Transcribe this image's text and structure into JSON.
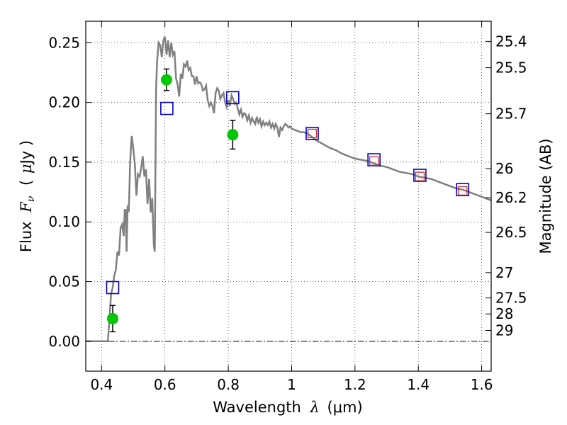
{
  "chart_data": {
    "type": "scatter",
    "xlabel": "Wavelength λ (μm)",
    "xlabel_parts": {
      "prefix": "Wavelength",
      "lambda": "λ",
      "unit": "(μm)"
    },
    "ylabel": "Flux Fν ( μJy )",
    "ylabel_parts": {
      "prefix": "Flux",
      "symbol": "F",
      "subscript": "ν",
      "unit_open": "(",
      "unit_mu": "μ",
      "unit_rest": "Jy )"
    },
    "y2label": "Magnitude (AB)",
    "xlim": [
      0.35,
      1.63
    ],
    "ylim": [
      -0.025,
      0.268
    ],
    "x_ticks": [
      0.4,
      0.6,
      0.8,
      1.0,
      1.2,
      1.4,
      1.6
    ],
    "x_tick_labels": [
      "0.4",
      "0.6",
      "0.8",
      "1",
      "1.2",
      "1.4",
      "1.6"
    ],
    "y_ticks": [
      0.0,
      0.05,
      0.1,
      0.15,
      0.2,
      0.25
    ],
    "y_tick_labels": [
      "0.00",
      "0.05",
      "0.10",
      "0.15",
      "0.20",
      "0.25"
    ],
    "y2_ticks": [
      25.4,
      25.5,
      25.7,
      26,
      26.2,
      26.5,
      27,
      27.5,
      28,
      29
    ],
    "y2_tick_labels": [
      "25.4",
      "25.5",
      "25.7",
      "26",
      "26.2",
      "26.5",
      "27",
      "27.5",
      "28",
      "29"
    ],
    "grid": true,
    "zero_line": true,
    "colors": {
      "model": "#808080",
      "observed": "#00c800",
      "model_band": "#0000cc",
      "model_band_inner": "#cc3333",
      "errorbar": "#000000"
    },
    "series": [
      {
        "name": "model-sed",
        "style": "line",
        "x": [
          0.35,
          0.42,
          0.425,
          0.43,
          0.435,
          0.44,
          0.445,
          0.45,
          0.455,
          0.46,
          0.465,
          0.47,
          0.473,
          0.476,
          0.479,
          0.482,
          0.486,
          0.49,
          0.495,
          0.5,
          0.505,
          0.51,
          0.515,
          0.52,
          0.525,
          0.53,
          0.535,
          0.54,
          0.545,
          0.55,
          0.555,
          0.56,
          0.565,
          0.568,
          0.572,
          0.575,
          0.58,
          0.585,
          0.59,
          0.595,
          0.6,
          0.605,
          0.61,
          0.615,
          0.62,
          0.625,
          0.63,
          0.635,
          0.64,
          0.645,
          0.65,
          0.655,
          0.66,
          0.665,
          0.67,
          0.675,
          0.68,
          0.685,
          0.69,
          0.695,
          0.7,
          0.705,
          0.71,
          0.715,
          0.72,
          0.725,
          0.73,
          0.735,
          0.74,
          0.745,
          0.75,
          0.755,
          0.76,
          0.765,
          0.77,
          0.775,
          0.78,
          0.785,
          0.79,
          0.795,
          0.8,
          0.805,
          0.81,
          0.815,
          0.82,
          0.825,
          0.83,
          0.835,
          0.84,
          0.845,
          0.85,
          0.855,
          0.86,
          0.865,
          0.87,
          0.875,
          0.88,
          0.885,
          0.89,
          0.895,
          0.9,
          0.905,
          0.91,
          0.915,
          0.92,
          0.925,
          0.93,
          0.935,
          0.94,
          0.945,
          0.95,
          0.955,
          0.96,
          0.965,
          0.97,
          0.975,
          0.98,
          0.985,
          0.99,
          0.995,
          1.0,
          1.01,
          1.02,
          1.03,
          1.04,
          1.05,
          1.06,
          1.08,
          1.1,
          1.12,
          1.14,
          1.16,
          1.18,
          1.2,
          1.22,
          1.24,
          1.26,
          1.28,
          1.3,
          1.32,
          1.34,
          1.36,
          1.38,
          1.4,
          1.42,
          1.44,
          1.46,
          1.48,
          1.5,
          1.52,
          1.54,
          1.56,
          1.58,
          1.6,
          1.63
        ],
        "y": [
          0.0,
          0.0,
          0.02,
          0.04,
          0.045,
          0.055,
          0.06,
          0.075,
          0.072,
          0.095,
          0.098,
          0.088,
          0.11,
          0.11,
          0.075,
          0.112,
          0.11,
          0.15,
          0.172,
          0.162,
          0.148,
          0.122,
          0.14,
          0.138,
          0.145,
          0.155,
          0.138,
          0.144,
          0.115,
          0.136,
          0.108,
          0.12,
          0.08,
          0.075,
          0.21,
          0.233,
          0.25,
          0.248,
          0.238,
          0.252,
          0.255,
          0.24,
          0.252,
          0.238,
          0.25,
          0.24,
          0.243,
          0.22,
          0.215,
          0.205,
          0.224,
          0.22,
          0.232,
          0.23,
          0.235,
          0.227,
          0.229,
          0.222,
          0.222,
          0.215,
          0.222,
          0.216,
          0.217,
          0.215,
          0.21,
          0.211,
          0.214,
          0.202,
          0.197,
          0.2,
          0.197,
          0.191,
          0.208,
          0.212,
          0.21,
          0.203,
          0.206,
          0.208,
          0.2,
          0.196,
          0.202,
          0.197,
          0.206,
          0.203,
          0.199,
          0.2,
          0.195,
          0.19,
          0.194,
          0.188,
          0.191,
          0.19,
          0.185,
          0.189,
          0.183,
          0.187,
          0.184,
          0.182,
          0.188,
          0.183,
          0.186,
          0.18,
          0.184,
          0.181,
          0.183,
          0.181,
          0.184,
          0.179,
          0.182,
          0.178,
          0.182,
          0.179,
          0.171,
          0.179,
          0.177,
          0.18,
          0.182,
          0.181,
          0.179,
          0.18,
          0.178,
          0.177,
          0.176,
          0.175,
          0.175,
          0.174,
          0.172,
          0.168,
          0.165,
          0.162,
          0.16,
          0.157,
          0.155,
          0.153,
          0.152,
          0.151,
          0.149,
          0.147,
          0.146,
          0.144,
          0.142,
          0.141,
          0.14,
          0.138,
          0.137,
          0.136,
          0.134,
          0.132,
          0.13,
          0.128,
          0.127,
          0.125,
          0.123,
          0.121,
          0.118
        ]
      },
      {
        "name": "observed-flux",
        "style": "points-with-errorbars",
        "x": [
          0.435,
          0.605,
          0.814
        ],
        "y": [
          0.019,
          0.219,
          0.173
        ],
        "yerr": [
          0.011,
          0.009,
          0.012
        ]
      },
      {
        "name": "model-band-flux",
        "style": "open-squares",
        "x": [
          0.435,
          0.606,
          0.814,
          1.065,
          1.26,
          1.405,
          1.54
        ],
        "y": [
          0.045,
          0.195,
          0.204,
          0.174,
          0.152,
          0.139,
          0.127
        ]
      },
      {
        "name": "model-band-flux-inner",
        "style": "small-open-squares",
        "x": [
          1.065,
          1.26,
          1.405,
          1.54
        ],
        "y": [
          0.174,
          0.151,
          0.138,
          0.126
        ]
      }
    ]
  }
}
